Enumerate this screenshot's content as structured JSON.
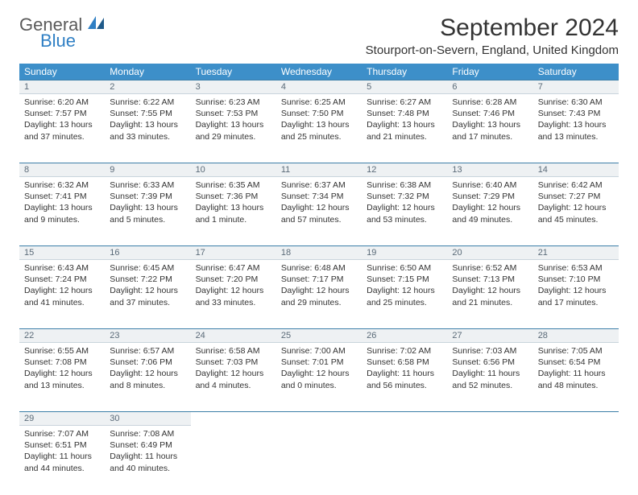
{
  "logo": {
    "word1": "General",
    "word2": "Blue"
  },
  "title": "September 2024",
  "location": "Stourport-on-Severn, England, United Kingdom",
  "header_bg": "#3d8fc9",
  "dayrow_bg": "#eef1f3",
  "dayrow_border_top": "#3d7fa8",
  "dayrow_border_bottom": "#c9d4dc",
  "weekdays": [
    "Sunday",
    "Monday",
    "Tuesday",
    "Wednesday",
    "Thursday",
    "Friday",
    "Saturday"
  ],
  "weeks": [
    [
      {
        "n": "1",
        "sunrise": "6:20 AM",
        "sunset": "7:57 PM",
        "dl": "13 hours and 37 minutes."
      },
      {
        "n": "2",
        "sunrise": "6:22 AM",
        "sunset": "7:55 PM",
        "dl": "13 hours and 33 minutes."
      },
      {
        "n": "3",
        "sunrise": "6:23 AM",
        "sunset": "7:53 PM",
        "dl": "13 hours and 29 minutes."
      },
      {
        "n": "4",
        "sunrise": "6:25 AM",
        "sunset": "7:50 PM",
        "dl": "13 hours and 25 minutes."
      },
      {
        "n": "5",
        "sunrise": "6:27 AM",
        "sunset": "7:48 PM",
        "dl": "13 hours and 21 minutes."
      },
      {
        "n": "6",
        "sunrise": "6:28 AM",
        "sunset": "7:46 PM",
        "dl": "13 hours and 17 minutes."
      },
      {
        "n": "7",
        "sunrise": "6:30 AM",
        "sunset": "7:43 PM",
        "dl": "13 hours and 13 minutes."
      }
    ],
    [
      {
        "n": "8",
        "sunrise": "6:32 AM",
        "sunset": "7:41 PM",
        "dl": "13 hours and 9 minutes."
      },
      {
        "n": "9",
        "sunrise": "6:33 AM",
        "sunset": "7:39 PM",
        "dl": "13 hours and 5 minutes."
      },
      {
        "n": "10",
        "sunrise": "6:35 AM",
        "sunset": "7:36 PM",
        "dl": "13 hours and 1 minute."
      },
      {
        "n": "11",
        "sunrise": "6:37 AM",
        "sunset": "7:34 PM",
        "dl": "12 hours and 57 minutes."
      },
      {
        "n": "12",
        "sunrise": "6:38 AM",
        "sunset": "7:32 PM",
        "dl": "12 hours and 53 minutes."
      },
      {
        "n": "13",
        "sunrise": "6:40 AM",
        "sunset": "7:29 PM",
        "dl": "12 hours and 49 minutes."
      },
      {
        "n": "14",
        "sunrise": "6:42 AM",
        "sunset": "7:27 PM",
        "dl": "12 hours and 45 minutes."
      }
    ],
    [
      {
        "n": "15",
        "sunrise": "6:43 AM",
        "sunset": "7:24 PM",
        "dl": "12 hours and 41 minutes."
      },
      {
        "n": "16",
        "sunrise": "6:45 AM",
        "sunset": "7:22 PM",
        "dl": "12 hours and 37 minutes."
      },
      {
        "n": "17",
        "sunrise": "6:47 AM",
        "sunset": "7:20 PM",
        "dl": "12 hours and 33 minutes."
      },
      {
        "n": "18",
        "sunrise": "6:48 AM",
        "sunset": "7:17 PM",
        "dl": "12 hours and 29 minutes."
      },
      {
        "n": "19",
        "sunrise": "6:50 AM",
        "sunset": "7:15 PM",
        "dl": "12 hours and 25 minutes."
      },
      {
        "n": "20",
        "sunrise": "6:52 AM",
        "sunset": "7:13 PM",
        "dl": "12 hours and 21 minutes."
      },
      {
        "n": "21",
        "sunrise": "6:53 AM",
        "sunset": "7:10 PM",
        "dl": "12 hours and 17 minutes."
      }
    ],
    [
      {
        "n": "22",
        "sunrise": "6:55 AM",
        "sunset": "7:08 PM",
        "dl": "12 hours and 13 minutes."
      },
      {
        "n": "23",
        "sunrise": "6:57 AM",
        "sunset": "7:06 PM",
        "dl": "12 hours and 8 minutes."
      },
      {
        "n": "24",
        "sunrise": "6:58 AM",
        "sunset": "7:03 PM",
        "dl": "12 hours and 4 minutes."
      },
      {
        "n": "25",
        "sunrise": "7:00 AM",
        "sunset": "7:01 PM",
        "dl": "12 hours and 0 minutes."
      },
      {
        "n": "26",
        "sunrise": "7:02 AM",
        "sunset": "6:58 PM",
        "dl": "11 hours and 56 minutes."
      },
      {
        "n": "27",
        "sunrise": "7:03 AM",
        "sunset": "6:56 PM",
        "dl": "11 hours and 52 minutes."
      },
      {
        "n": "28",
        "sunrise": "7:05 AM",
        "sunset": "6:54 PM",
        "dl": "11 hours and 48 minutes."
      }
    ],
    [
      {
        "n": "29",
        "sunrise": "7:07 AM",
        "sunset": "6:51 PM",
        "dl": "11 hours and 44 minutes."
      },
      {
        "n": "30",
        "sunrise": "7:08 AM",
        "sunset": "6:49 PM",
        "dl": "11 hours and 40 minutes."
      },
      null,
      null,
      null,
      null,
      null
    ]
  ],
  "labels": {
    "sunrise": "Sunrise:",
    "sunset": "Sunset:",
    "daylight": "Daylight:"
  }
}
